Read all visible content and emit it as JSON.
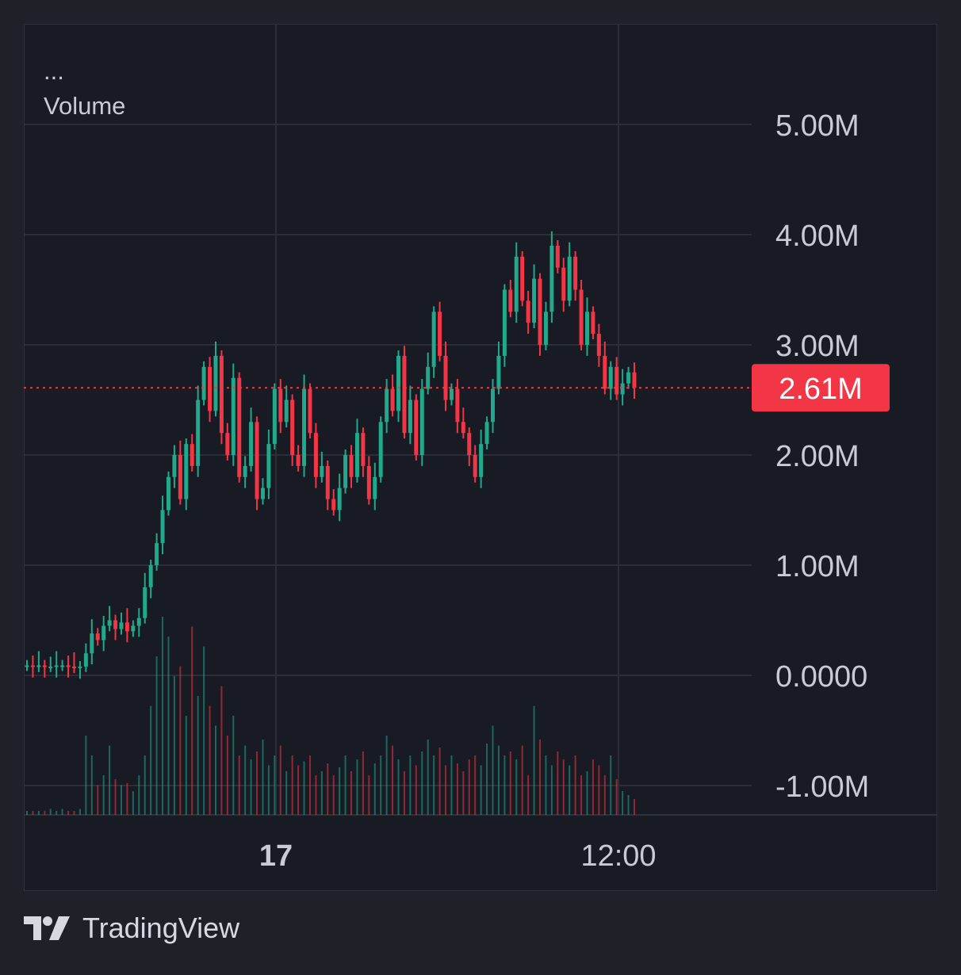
{
  "legend": {
    "more": "...",
    "indicator": "Volume"
  },
  "brand": {
    "name": "TradingView",
    "icon": "tradingview-logo-icon"
  },
  "colors": {
    "up": "#22a88a",
    "down": "#f23645",
    "background": "#181a24",
    "grid": "#2b2e39",
    "text": "#c9cbd3"
  },
  "last_price_label": "2.61M",
  "chart_data": [
    {
      "type": "candlestick",
      "title": "",
      "y_ticks": [
        "5.00M",
        "4.00M",
        "3.00M",
        "2.00M",
        "1.00M",
        "0.0000",
        "-1.00M"
      ],
      "y_tick_values": [
        5000000,
        4000000,
        3000000,
        2000000,
        1000000,
        0,
        -1000000
      ],
      "ylim": [
        -1300000,
        5200000
      ],
      "x_ticks": [
        "17",
        "12:00"
      ],
      "last_value": 2610000,
      "grid": true,
      "note_series": "approximate price path read off the chart (millions)",
      "close_path": [
        0.09,
        0.08,
        0.09,
        0.08,
        0.08,
        0.09,
        0.09,
        0.08,
        0.07,
        0.08,
        0.2,
        0.38,
        0.32,
        0.45,
        0.5,
        0.42,
        0.48,
        0.4,
        0.45,
        0.52,
        0.8,
        1.0,
        1.2,
        1.5,
        1.8,
        2.0,
        1.6,
        2.1,
        1.9,
        2.5,
        2.8,
        2.4,
        2.9,
        2.2,
        2.0,
        2.7,
        1.8,
        1.9,
        2.3,
        1.6,
        1.7,
        2.1,
        2.6,
        2.3,
        2.5,
        2.0,
        1.9,
        2.6,
        2.2,
        1.8,
        1.9,
        1.6,
        1.5,
        1.7,
        2.0,
        1.8,
        2.2,
        1.9,
        1.6,
        1.8,
        2.3,
        2.6,
        2.4,
        2.9,
        2.2,
        2.5,
        2.0,
        2.6,
        2.8,
        3.3,
        2.9,
        2.5,
        2.6,
        2.3,
        2.2,
        2.0,
        1.8,
        2.1,
        2.3,
        2.6,
        2.9,
        3.5,
        3.3,
        3.8,
        3.4,
        3.2,
        3.6,
        3.0,
        3.3,
        3.9,
        3.7,
        3.4,
        3.8,
        3.5,
        3.0,
        3.3,
        3.1,
        2.9,
        2.6,
        2.8,
        2.55,
        2.65,
        2.75,
        2.61
      ]
    },
    {
      "type": "bar",
      "title": "Volume",
      "note": "volume histogram bars (relative scale)",
      "values": [
        0.02,
        0.02,
        0.02,
        0.02,
        0.03,
        0.02,
        0.03,
        0.02,
        0.02,
        0.03,
        0.4,
        0.3,
        0.15,
        0.2,
        0.35,
        0.18,
        0.15,
        0.16,
        0.12,
        0.2,
        0.3,
        0.55,
        0.8,
        1.0,
        0.9,
        0.7,
        0.75,
        0.5,
        0.95,
        0.6,
        0.85,
        0.55,
        0.45,
        0.65,
        0.4,
        0.5,
        0.3,
        0.35,
        0.28,
        0.32,
        0.38,
        0.25,
        0.3,
        0.35,
        0.22,
        0.3,
        0.25,
        0.27,
        0.3,
        0.2,
        0.22,
        0.26,
        0.2,
        0.24,
        0.3,
        0.22,
        0.28,
        0.32,
        0.2,
        0.26,
        0.3,
        0.4,
        0.35,
        0.28,
        0.22,
        0.3,
        0.25,
        0.32,
        0.38,
        0.3,
        0.34,
        0.25,
        0.3,
        0.26,
        0.22,
        0.28,
        0.3,
        0.25,
        0.36,
        0.45,
        0.35,
        0.3,
        0.32,
        0.28,
        0.35,
        0.2,
        0.55,
        0.38,
        0.3,
        0.25,
        0.32,
        0.28,
        0.25,
        0.3,
        0.2,
        0.22,
        0.28,
        0.25,
        0.2,
        0.3,
        0.18,
        0.12,
        0.1,
        0.08
      ]
    }
  ]
}
